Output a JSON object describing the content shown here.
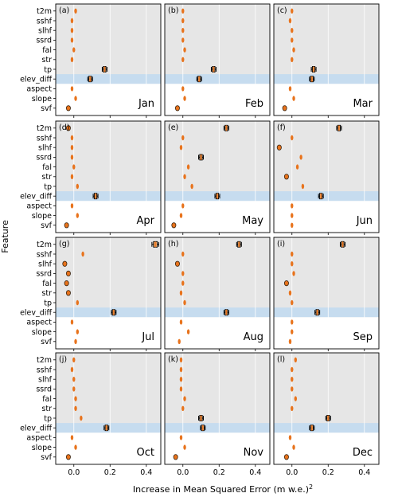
{
  "y_axis_label": "Feature",
  "x_axis_label": "Increase in Mean Squared Error (m w.e.)",
  "x_axis_label_superscript": "2",
  "colors": {
    "panel_bg": "#e6e6e6",
    "highlight_band": "#c6dcef",
    "box_fill": "#f4a460",
    "marker": "#e8731c",
    "whisker": "#000000"
  },
  "chart_data": {
    "type": "box",
    "grid": true,
    "highlighted_feature": "elev_diff",
    "features": [
      "t2m",
      "sshf",
      "slhf",
      "ssrd",
      "fal",
      "str",
      "tp",
      "elev_diff",
      "aspect",
      "slope",
      "svf"
    ],
    "xlim": [
      -0.1,
      0.48
    ],
    "xticks": [
      0.0,
      0.2,
      0.4
    ],
    "xtick_labels": [
      "0.0",
      "0.2",
      "0.4"
    ],
    "panels": [
      {
        "letter": "(a)",
        "month": "Jan",
        "values": [
          0.01,
          -0.01,
          -0.01,
          -0.01,
          0.0,
          -0.01,
          0.17,
          0.09,
          -0.01,
          0.01,
          -0.03
        ]
      },
      {
        "letter": "(b)",
        "month": "Feb",
        "values": [
          0.0,
          0.0,
          0.0,
          0.0,
          0.01,
          0.0,
          0.17,
          0.09,
          0.0,
          0.01,
          -0.03
        ]
      },
      {
        "letter": "(c)",
        "month": "Mar",
        "values": [
          0.0,
          -0.01,
          0.0,
          0.0,
          0.01,
          0.0,
          0.12,
          0.11,
          -0.01,
          0.01,
          -0.04
        ]
      },
      {
        "letter": "(d)",
        "month": "Apr",
        "values": [
          -0.03,
          -0.01,
          -0.01,
          -0.01,
          0.0,
          -0.01,
          0.02,
          0.12,
          -0.01,
          0.02,
          -0.04
        ]
      },
      {
        "letter": "(e)",
        "month": "May",
        "values": [
          0.24,
          0.0,
          -0.01,
          0.1,
          0.03,
          0.01,
          0.05,
          0.19,
          0.0,
          -0.01,
          -0.05
        ]
      },
      {
        "letter": "(f)",
        "month": "Jun",
        "values": [
          0.26,
          0.0,
          -0.07,
          0.05,
          0.03,
          -0.03,
          0.06,
          0.16,
          0.0,
          0.0,
          0.0
        ]
      },
      {
        "letter": "(g)",
        "month": "Jul",
        "values": [
          0.45,
          0.05,
          -0.05,
          -0.03,
          -0.04,
          -0.03,
          0.02,
          0.22,
          -0.01,
          0.02,
          0.01
        ]
      },
      {
        "letter": "(h)",
        "month": "Aug",
        "values": [
          0.31,
          0.0,
          -0.03,
          0.0,
          0.0,
          -0.01,
          0.01,
          0.24,
          -0.01,
          0.03,
          -0.02
        ]
      },
      {
        "letter": "(i)",
        "month": "Sep",
        "values": [
          0.28,
          0.0,
          0.0,
          0.01,
          -0.03,
          -0.01,
          0.0,
          0.14,
          0.0,
          0.0,
          -0.01
        ]
      },
      {
        "letter": "(j)",
        "month": "Oct",
        "values": [
          0.0,
          -0.01,
          0.0,
          0.0,
          0.01,
          0.01,
          0.04,
          0.18,
          -0.01,
          0.01,
          -0.03
        ]
      },
      {
        "letter": "(k)",
        "month": "Nov",
        "values": [
          -0.01,
          -0.01,
          -0.01,
          -0.01,
          0.01,
          0.0,
          0.1,
          0.11,
          -0.01,
          0.01,
          -0.04
        ]
      },
      {
        "letter": "(l)",
        "month": "Dec",
        "values": [
          0.02,
          0.0,
          0.0,
          0.0,
          0.02,
          0.0,
          0.2,
          0.11,
          -0.01,
          0.01,
          -0.03
        ]
      }
    ]
  }
}
